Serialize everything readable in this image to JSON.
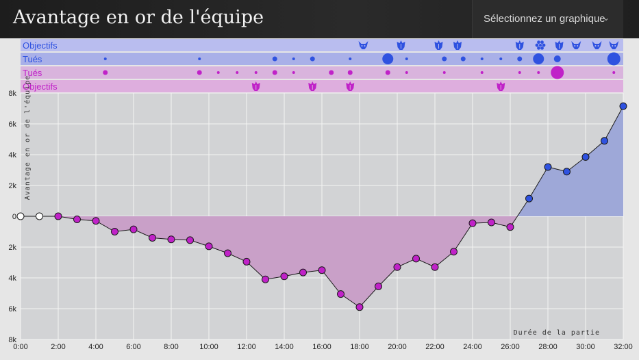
{
  "header": {
    "title": "Avantage en or de l'équipe",
    "chart_selector_label": "Sélectionnez un graphique",
    "chevron_icon": "chevron-down-icon"
  },
  "colors": {
    "blue_team": "#2f52e0",
    "purple_team": "#c022c8",
    "blue_fill": "#9ea8d8",
    "purple_fill": "#c9a0c8",
    "band_blue_objectives": "#b9bdef",
    "band_blue_kills": "#a9b0e8",
    "band_purple_kills": "#d9b4dd",
    "band_purple_objectives": "#deaede",
    "plot_bg": "#d2d3d5"
  },
  "bands": {
    "blue_objectives": {
      "label": "Objectifs",
      "events": [
        {
          "time": 18.2,
          "icon": "baron-icon"
        },
        {
          "time": 20.2,
          "icon": "dragon-icon"
        },
        {
          "time": 22.2,
          "icon": "dragon-icon"
        },
        {
          "time": 23.2,
          "icon": "dragon-icon"
        },
        {
          "time": 26.5,
          "icon": "dragon-icon"
        },
        {
          "time": 27.6,
          "icon": "inhibitor-icon"
        },
        {
          "time": 28.6,
          "icon": "dragon-icon"
        },
        {
          "time": 29.5,
          "icon": "baron-icon"
        },
        {
          "time": 30.6,
          "icon": "baron-icon"
        },
        {
          "time": 31.5,
          "icon": "baron-icon"
        }
      ]
    },
    "blue_kills": {
      "label": "Tués",
      "events": [
        {
          "time": 4.5,
          "size": 1
        },
        {
          "time": 9.5,
          "size": 1
        },
        {
          "time": 13.5,
          "size": 2
        },
        {
          "time": 14.5,
          "size": 1
        },
        {
          "time": 15.5,
          "size": 2
        },
        {
          "time": 17.5,
          "size": 1
        },
        {
          "time": 19.5,
          "size": 5
        },
        {
          "time": 20.5,
          "size": 1
        },
        {
          "time": 22.5,
          "size": 2
        },
        {
          "time": 23.5,
          "size": 2
        },
        {
          "time": 24.5,
          "size": 1
        },
        {
          "time": 25.5,
          "size": 1
        },
        {
          "time": 26.5,
          "size": 2
        },
        {
          "time": 27.5,
          "size": 5
        },
        {
          "time": 28.5,
          "size": 3
        },
        {
          "time": 31.5,
          "size": 6
        }
      ]
    },
    "purple_kills": {
      "label": "Tués",
      "events": [
        {
          "time": 4.5,
          "size": 2
        },
        {
          "time": 9.5,
          "size": 2
        },
        {
          "time": 10.5,
          "size": 1
        },
        {
          "time": 11.5,
          "size": 1
        },
        {
          "time": 12.5,
          "size": 1
        },
        {
          "time": 13.5,
          "size": 2
        },
        {
          "time": 14.5,
          "size": 1
        },
        {
          "time": 16.5,
          "size": 2
        },
        {
          "time": 17.5,
          "size": 2
        },
        {
          "time": 19.5,
          "size": 2
        },
        {
          "time": 20.5,
          "size": 1
        },
        {
          "time": 22.5,
          "size": 1
        },
        {
          "time": 24.5,
          "size": 1
        },
        {
          "time": 26.5,
          "size": 1
        },
        {
          "time": 27.5,
          "size": 1
        },
        {
          "time": 28.5,
          "size": 6
        },
        {
          "time": 31.5,
          "size": 1
        }
      ]
    },
    "purple_objectives": {
      "label": "Objectifs",
      "events": [
        {
          "time": 12.5,
          "icon": "dragon-icon"
        },
        {
          "time": 15.5,
          "icon": "dragon-icon"
        },
        {
          "time": 17.5,
          "icon": "dragon-icon"
        },
        {
          "time": 25.5,
          "icon": "dragon-icon"
        }
      ]
    }
  },
  "chart_data": {
    "type": "area",
    "ylabel": "Avantage en or de l'équipe",
    "xlabel": "Durée de la partie",
    "x_tick_labels": [
      "0:00",
      "2:00",
      "4:00",
      "6:00",
      "8:00",
      "10:00",
      "12:00",
      "14:00",
      "16:00",
      "18:00",
      "20:00",
      "22:00",
      "24:00",
      "26:00",
      "28:00",
      "30:00",
      "32:00"
    ],
    "y_tick_labels": [
      "8k",
      "6k",
      "4k",
      "2k",
      "0",
      "2k",
      "4k",
      "6k",
      "8k"
    ],
    "xlim": [
      0,
      32
    ],
    "ylim": [
      -8000,
      8000
    ],
    "grid": true,
    "series": [
      {
        "x": [
          0,
          1,
          2,
          3,
          4,
          5,
          6,
          7,
          8,
          9,
          10,
          11,
          12,
          13,
          14,
          15,
          16,
          17,
          18,
          19,
          20,
          21,
          22,
          23,
          24,
          25,
          26,
          27,
          28,
          29,
          30,
          31,
          32
        ],
        "values": [
          0,
          0,
          0,
          -200,
          -300,
          -1000,
          -850,
          -1400,
          -1500,
          -1550,
          -1950,
          -2400,
          -2950,
          -4100,
          -3900,
          -3650,
          -3500,
          -5050,
          -5900,
          -4550,
          -3300,
          -2750,
          -3300,
          -2300,
          -450,
          -400,
          -700,
          1150,
          3200,
          2900,
          3850,
          4900,
          7150
        ]
      }
    ]
  }
}
